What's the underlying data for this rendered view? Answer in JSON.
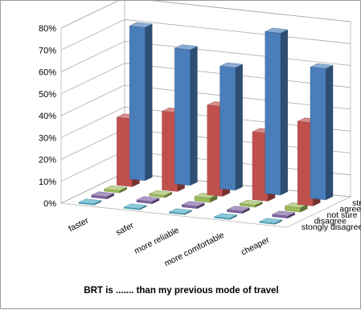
{
  "chart_data": {
    "type": "bar",
    "subtype": "3d-column",
    "title": "",
    "caption": "BRT is ....... than my previous mode of travel",
    "categories": [
      "faster",
      "safer",
      "more reliable",
      "more comfortable",
      "cheaper"
    ],
    "series": [
      {
        "name": "strongly agree",
        "color": "#4a7ebb",
        "values": [
          70,
          62,
          56,
          74,
          60
        ]
      },
      {
        "name": "agree",
        "color": "#c0504d",
        "values": [
          31,
          36,
          41,
          31,
          38
        ]
      },
      {
        "name": "not sure",
        "color": "#9bbb59",
        "values": [
          1,
          1,
          2,
          1,
          2
        ]
      },
      {
        "name": "disagree",
        "color": "#8064a2",
        "values": [
          1,
          1,
          1,
          1,
          1
        ]
      },
      {
        "name": "stongly disagree",
        "color": "#4bacc6",
        "values": [
          0.5,
          0.5,
          0.5,
          0.5,
          0.5
        ]
      }
    ],
    "yticks": [
      "0%",
      "10%",
      "20%",
      "30%",
      "40%",
      "50%",
      "60%",
      "70%",
      "80%"
    ],
    "ylim": [
      0,
      80
    ],
    "grid": true,
    "legend": "series labels on depth axis (right)"
  }
}
